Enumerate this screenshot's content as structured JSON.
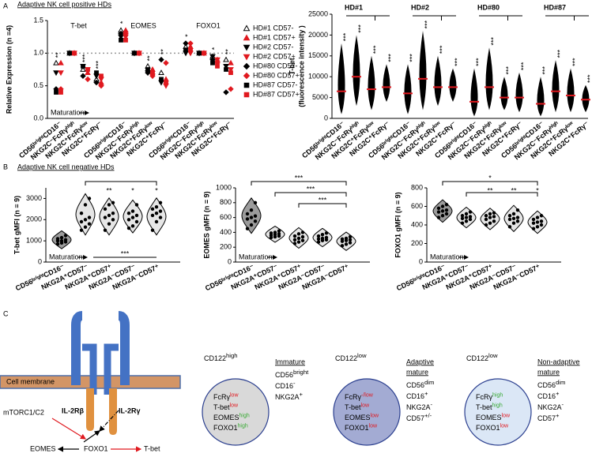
{
  "panel_labels": [
    "A",
    "B",
    "C"
  ],
  "section_titles": [
    "Adaptive NK cell positive HDs",
    "Adaptive NK cell negative HDs"
  ],
  "chart_data": [
    {
      "type": "category_scatter",
      "y_label": "Relative Expression (n =4)",
      "ylim": [
        0,
        1.5
      ],
      "yticks": [
        {
          "value": 0,
          "label": "0.0"
        },
        0.5,
        {
          "value": 1,
          "label": "1.0"
        },
        1.5
      ],
      "reference_line": 1,
      "groups": [
        "T-bet",
        "EOMES",
        "FOXO1"
      ],
      "categories": [
        "CD56ᵇʳⁱᵍʰᵗCD16⁻",
        "NKG2C⁻FcRγʰⁱᵍʰ",
        "NKG2C⁺FcRγˡᵒʷ",
        "NKG2C⁺FcRγ⁻",
        "CD56ᵇʳⁱᵍʰᵗCD16⁻",
        "NKG2C⁻FcRγʰⁱᵍʰ",
        "NKG2C⁺FcRγˡᵒʷ",
        "NKG2C⁺FcRγ⁻",
        "CD56ᵇʳⁱᵍʰᵗCD16⁻",
        "NKG2C⁻FcRγʰⁱᵍʰ",
        "NKG2C⁺FcRγˡᵒʷ",
        "NKG2C⁺FcRγ⁻"
      ],
      "significance": [
        "**",
        null,
        "***",
        "***",
        "*",
        null,
        "**",
        "**",
        "*",
        null,
        "*",
        "**"
      ],
      "maturation_label": "Maturation",
      "series": [
        {
          "name": "HD#1 CD57-",
          "color": "#000000",
          "marker": "triangle-open",
          "values": [
            0.85,
            1,
            0.75,
            0.6,
            1.35,
            1,
            0.8,
            0.7,
            1.1,
            1,
            0.95,
            0.9
          ]
        },
        {
          "name": "HD#1 CD57+",
          "color": "#e0191f",
          "marker": "triangle",
          "values": [
            0.85,
            1,
            0.7,
            0.55,
            1.35,
            1,
            0.75,
            0.6,
            1.1,
            1,
            0.9,
            0.85
          ]
        },
        {
          "name": "HD#2 CD57-",
          "color": "#000000",
          "marker": "triangle-down",
          "values": [
            0.7,
            1,
            0.8,
            0.65,
            1.25,
            1,
            0.7,
            0.55,
            1,
            1,
            0.95,
            0.8
          ]
        },
        {
          "name": "HD#2 CD57+",
          "color": "#e0191f",
          "marker": "triangle-down",
          "values": [
            0.7,
            1,
            0.75,
            0.6,
            1.25,
            1,
            0.65,
            0.5,
            1,
            1,
            0.9,
            0.75
          ]
        },
        {
          "name": "HD#80 CD57-",
          "color": "#000000",
          "marker": "diamond",
          "values": [
            0.45,
            1,
            0.65,
            0.55,
            1.3,
            1,
            0.7,
            0.9,
            1.15,
            1,
            0.9,
            0.4
          ]
        },
        {
          "name": "HD#80 CD57+",
          "color": "#e0191f",
          "marker": "diamond",
          "values": [
            0.45,
            1,
            0.6,
            0.5,
            1.3,
            1,
            0.65,
            0.85,
            1.15,
            1,
            0.85,
            0.45
          ]
        },
        {
          "name": "HD#87 CD57-",
          "color": "#000000",
          "marker": "square",
          "values": [
            0.4,
            1,
            0.8,
            0.7,
            1.2,
            1,
            0.75,
            0.6,
            1.05,
            1,
            0.85,
            0.75
          ]
        },
        {
          "name": "HD#87 CD57+",
          "color": "#e0191f",
          "marker": "square",
          "values": [
            0.4,
            1,
            0.75,
            0.65,
            1.2,
            1,
            0.7,
            0.55,
            1.05,
            1,
            0.8,
            0.7
          ]
        }
      ]
    },
    {
      "type": "dot_range",
      "y_label": [
        "T-bet",
        "(fluorescence intensity )"
      ],
      "ylim": [
        0,
        25000
      ],
      "yticks": [
        0,
        5000,
        10000,
        15000,
        20000,
        25000
      ],
      "groups": [
        "HD#1",
        "HD#2",
        "HD#80",
        "HD#87"
      ],
      "categories": [
        "CD56ᵇʳⁱᵍʰᵗCD16⁻",
        "NKG2C⁻FcRγʰⁱᵍʰ",
        "NKG2C⁺FcRγˡᵒʷ",
        "NKG2C⁺FcRγ⁻",
        "CD56ᵇʳⁱᵍʰᵗCD16⁻",
        "NKG2C⁻FcRγʰⁱᵍʰ",
        "NKG2C⁺FcRγˡᵒʷ",
        "NKG2C⁺FcRγ⁻",
        "CD56ᵇʳⁱᵍʰᵗCD16⁻",
        "NKG2C⁻FcRγʰⁱᵍʰ",
        "NKG2C⁺FcRγˡᵒʷ",
        "NKG2C⁺FcRγ⁻",
        "CD56ᵇʳⁱᵍʰᵗCD16⁻",
        "NKG2C⁻FcRγʰⁱᵍʰ",
        "NKG2C⁺FcRγˡᵒʷ",
        "NKG2C⁺FcRγ⁻"
      ],
      "values": [
        6500,
        10000,
        7000,
        7500,
        6000,
        9500,
        7500,
        7500,
        4000,
        7500,
        5000,
        5000,
        3500,
        6500,
        5500,
        4500
      ],
      "low": [
        1000,
        3000,
        2000,
        4000,
        1000,
        2000,
        3000,
        4000,
        500,
        2000,
        2000,
        1500,
        500,
        1500,
        1500,
        1500
      ],
      "high": [
        18000,
        20000,
        15000,
        13000,
        13000,
        21000,
        15000,
        12000,
        12000,
        17000,
        10000,
        11000,
        10000,
        14000,
        12000,
        8000
      ],
      "color": "#000000",
      "median_color": "#e0191f",
      "significance": [
        "***",
        "***",
        "***",
        "***",
        "***",
        "***",
        "***",
        "***",
        "***",
        "***",
        "***",
        "***",
        "***",
        "***",
        "***",
        "***"
      ]
    },
    {
      "type": "violin",
      "y_label": "T-bet gMFI (n = 9)",
      "ylim": [
        0,
        3500
      ],
      "yticks": [
        0,
        1000,
        2000,
        3000
      ],
      "categories": [
        "CD56ᵇʳⁱᵍʰᵗCD16⁻",
        "NKG2A⁺CD57⁻",
        "NKG2A⁺CD57⁺",
        "NKG2A⁻CD57⁻",
        "NKG2A⁻CD57⁺"
      ],
      "points": [
        [
          850,
          900,
          950,
          1000,
          1000,
          1050,
          1100,
          1150,
          1250
        ],
        [
          1500,
          1650,
          1800,
          1900,
          2000,
          2100,
          2300,
          2700,
          3000
        ],
        [
          1500,
          1800,
          2000,
          2100,
          2200,
          2300,
          2500,
          2700,
          2800
        ],
        [
          1600,
          1700,
          1900,
          2000,
          2100,
          2200,
          2300,
          2400,
          2700
        ],
        [
          1500,
          1900,
          2100,
          2200,
          2300,
          2400,
          2500,
          2600,
          2800
        ]
      ],
      "significance": [
        null,
        null,
        "**",
        "*",
        "*"
      ],
      "brackets": [
        {
          "from": 1,
          "to": 4,
          "side": "top"
        },
        {
          "from": 0,
          "to": 4,
          "side": "bottom",
          "label": "***"
        }
      ],
      "maturation_label": "Maturation"
    },
    {
      "type": "violin",
      "y_label": "EOMES gMFI (n = 9)",
      "ylim": [
        0,
        1000
      ],
      "yticks": [
        0,
        200,
        400,
        600,
        800,
        1000
      ],
      "categories": [
        "CD56ᵇʳⁱᵍʰᵗCD16⁻",
        "NKG2A⁺CD57⁻",
        "NKG2A⁺CD57⁺",
        "NKG2A⁻CD57⁻",
        "NKG2A⁻CD57⁺"
      ],
      "points": [
        [
          450,
          500,
          550,
          580,
          600,
          620,
          650,
          700,
          800
        ],
        [
          330,
          340,
          350,
          360,
          370,
          380,
          390,
          400,
          420
        ],
        [
          250,
          270,
          290,
          300,
          320,
          340,
          350,
          380,
          400
        ],
        [
          270,
          290,
          300,
          310,
          320,
          330,
          350,
          370,
          390
        ],
        [
          220,
          240,
          260,
          280,
          290,
          300,
          310,
          320,
          340
        ]
      ],
      "significance": [
        null,
        null,
        null,
        null,
        null
      ],
      "brackets": [
        {
          "from": 0,
          "to": 4,
          "side": "top",
          "label": "***"
        },
        {
          "from": 1,
          "to": 4,
          "side": "top",
          "label": "***"
        },
        {
          "from": 2,
          "to": 4,
          "side": "top",
          "label": "***"
        }
      ],
      "maturation_label": "Maturation"
    },
    {
      "type": "violin",
      "y_label": "FOXO1 gMFI (n = 9)",
      "ylim": [
        0,
        800
      ],
      "yticks": [
        0,
        200,
        400,
        600,
        800
      ],
      "categories": [
        "CD56ᵇʳⁱᵍʰᵗCD16⁻",
        "NKG2A⁺CD57⁻",
        "NKG2A⁺CD57⁺",
        "NKG2A⁻CD57⁻",
        "NKG2A⁻CD57⁺"
      ],
      "points": [
        [
          480,
          500,
          520,
          540,
          550,
          560,
          580,
          600,
          620
        ],
        [
          420,
          440,
          460,
          470,
          480,
          490,
          500,
          520,
          540
        ],
        [
          400,
          420,
          440,
          460,
          480,
          490,
          500,
          520,
          530
        ],
        [
          380,
          420,
          440,
          460,
          470,
          480,
          500,
          520,
          560
        ],
        [
          360,
          380,
          400,
          420,
          430,
          440,
          460,
          480,
          500
        ]
      ],
      "significance": [
        null,
        null,
        "**",
        "**",
        "*"
      ],
      "brackets": [
        {
          "from": 0,
          "to": 4,
          "side": "top",
          "label": "*"
        },
        {
          "from": 1,
          "to": 4,
          "side": "top"
        }
      ],
      "maturation_label": "Maturation"
    }
  ],
  "diagram": {
    "membrane": "Cell membrane",
    "beta": "IL-2Rβ",
    "gamma": "IL-2Rγ",
    "mtor": "mTORC1/C2",
    "eomes": "EOMES",
    "foxo1": "FOXO1",
    "tbet": "T-bet"
  },
  "phenotypes": [
    {
      "header": {
        "base": "CD122",
        "sup": "high"
      },
      "fill": "#d9d9d9",
      "title": [
        "Immature"
      ],
      "lines": [
        {
          "base": "FcRγ",
          "sup": "low",
          "sup_color": "#e0191f"
        },
        {
          "base": "T-bet",
          "sup": "low",
          "sup_color": "#e0191f"
        },
        {
          "base": "EOMES",
          "sup": "high",
          "sup_color": "#3aaa35"
        },
        {
          "base": "FOXO1",
          "sup": "high",
          "sup_color": "#3aaa35"
        }
      ],
      "markers": [
        {
          "base": "CD56",
          "sup": "bright"
        },
        {
          "base": "CD16",
          "sup": "-"
        },
        {
          "base": "NKG2A",
          "sup": "+"
        }
      ]
    },
    {
      "header": {
        "base": "CD122",
        "sup": "low"
      },
      "fill": "#a3abd3",
      "title": [
        "Adaptive",
        "mature"
      ],
      "lines": [
        {
          "base": "FcRγ",
          "sup": "-/low",
          "sup_color": "#e0191f"
        },
        {
          "base": "T-bet",
          "sup": "low",
          "sup_color": "#e0191f"
        },
        {
          "base": "EOMES",
          "sup": "low",
          "sup_color": "#e0191f"
        },
        {
          "base": "FOXO1",
          "sup": "low",
          "sup_color": "#e0191f"
        }
      ],
      "markers": [
        {
          "base": "CD56",
          "sup": "dim"
        },
        {
          "base": "CD16",
          "sup": "+"
        },
        {
          "base": "NKG2A",
          "sup": "-"
        },
        {
          "base": "CD57",
          "sup": "+/-"
        }
      ]
    },
    {
      "header": {
        "base": "CD122",
        "sup": "low"
      },
      "fill": "#dbe7f6",
      "title": [
        "Non-adaptive",
        "mature"
      ],
      "lines": [
        {
          "base": "FcRγ",
          "sup": "high",
          "sup_color": "#3aaa35"
        },
        {
          "base": "T-bet",
          "sup": "high",
          "sup_color": "#3aaa35"
        },
        {
          "base": "EOMES",
          "sup": "low",
          "sup_color": "#e0191f"
        },
        {
          "base": "FOXO1",
          "sup": "low",
          "sup_color": "#e0191f"
        }
      ],
      "markers": [
        {
          "base": "CD56",
          "sup": "dim"
        },
        {
          "base": "CD16",
          "sup": "+"
        },
        {
          "base": "NKG2A",
          "sup": "-"
        },
        {
          "base": "CD57",
          "sup": "+"
        }
      ]
    }
  ]
}
